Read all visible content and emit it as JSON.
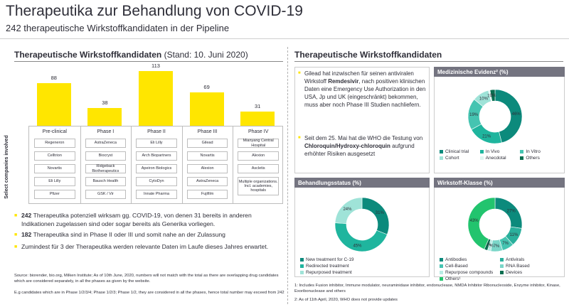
{
  "header": {
    "title": "Therapeutika zur Behandlung von COVID-19",
    "subtitle": "242 therapeutische Wirkstoffkandidaten in der Pipeline"
  },
  "left": {
    "section_title": "Therapeutische Wirkstoffkandidaten",
    "section_title_date": "(Stand: 10. Juni 2020)",
    "ylabel": "Select companies involved",
    "bullets": [
      {
        "bold": "242",
        "text": " Therapeutika potenziell wirksam gg. COVID-19, von denen 31 bereits in anderen Indikationen zugelassen sind oder sogar bereits als Generika vorliegen."
      },
      {
        "bold": "182",
        "text": " Therapeutika sind in Phase II oder III und somit nahe an der Zulassung"
      },
      {
        "bold": "",
        "text": "Zumindest für 3 der Therapeutika werden relevante Daten im Laufe dieses Jahres erwartet."
      }
    ],
    "source": "Source: biorender, bio.org, Milken Institute; As of 10th June, 2020, numbers will not match with the total as there are overlapping drug candidates which are considered separately, in all the phases as given by the website.",
    "source2": "E.g candidates which are in Phase 1/2/3/4; Phase 1/2/3; Phase 1/2, they are  considered in all the phases, hence total number may exceed from 242"
  },
  "chart_data": [
    {
      "type": "bar",
      "title": "Therapeutische Wirkstoffkandidaten (Stand: 10. Juni 2020)",
      "categories": [
        "Pre-clinical",
        "Phase I",
        "Phase II",
        "Phase III",
        "Phase IV"
      ],
      "values": [
        88,
        38,
        113,
        69,
        31
      ],
      "ylim": [
        0,
        113
      ],
      "color": "#ffe600",
      "companies": [
        [
          "Regeneron",
          "Celltrion",
          "Novartis",
          "Eli Lilly",
          "Pfizer"
        ],
        [
          "AstraZeneca",
          "Biocryst",
          "Ridgeback Biotherapeutics",
          "Bausch Health",
          "GSK / Vir"
        ],
        [
          "Eli Lilly",
          "Arch Biopartners",
          "Apeiron Biologics",
          "CytoDyn",
          "Innate Pharma"
        ],
        [
          "Gilead",
          "Novartis",
          "Alexion",
          "AstraZeneca",
          "Fujifilm"
        ],
        [
          "Mianyang Central Hospital",
          "Alexion",
          "Ascletis",
          "Multiple organizations. Incl. academies, hospitals",
          ""
        ]
      ]
    },
    {
      "type": "pie",
      "title": "Medizinische Evidenz² (%)",
      "labels": [
        "Clinical trial",
        "In Vivo",
        "In Vitro",
        "Cohort",
        "Anecdotal",
        "Others"
      ],
      "values": [
        46,
        21,
        19,
        10,
        1,
        3
      ],
      "value_labels": [
        "46%",
        "21%",
        "19%",
        "10%",
        "1%",
        "3%"
      ],
      "colors": [
        "#0c8a7c",
        "#1fb59e",
        "#45c4b1",
        "#9fe3d8",
        "#dff5f1",
        "#0a6e50"
      ]
    },
    {
      "type": "pie",
      "title": "Behandlungsstatus (%)",
      "labels": [
        "New treatment for C-19",
        "Redirected treatment",
        "Repurposed treatment"
      ],
      "values": [
        31,
        45,
        24
      ],
      "value_labels": [
        "31%",
        "45%",
        "24%"
      ],
      "colors": [
        "#0c8a7c",
        "#1fb59e",
        "#9fe3d8"
      ]
    },
    {
      "type": "pie",
      "title": "Wirkstoff-Klasse (%)",
      "labels": [
        "Antibodies",
        "Antivirals",
        "Cell-Based",
        "RNA Based",
        "Repurpose compounds",
        "Devices",
        "Others¹"
      ],
      "values": [
        27,
        11,
        7,
        7,
        2,
        2,
        43
      ],
      "value_labels": [
        "27%",
        "11%",
        "7%",
        "7%",
        "2%",
        "2%",
        "43%"
      ],
      "colors": [
        "#0c8a7c",
        "#2ab09c",
        "#45c4b1",
        "#7ad6c8",
        "#b8ece4",
        "#0a6e50",
        "#22c46e"
      ]
    }
  ],
  "right": {
    "section_title": "Therapeutische Wirkstoffkandidaten",
    "bullets": [
      {
        "pre": "Gilead hat inzwischen für seinen antiviralen Wirkstoff ",
        "bold": "Remdesivir",
        "post": ", nach positiven klinischen Daten eine Emergency Use Authorization in den USA, Jp und UK (eingeschränkt) bekommen, muss aber noch Phase III Studien nachliefern."
      },
      {
        "pre": "Seit dem 25. Mai hat die WHO die Testung von ",
        "bold": "Chloroquin/Hydroxy-chloroquin",
        "post": " aufgrund erhöhter Risiken ausgesetzt"
      }
    ],
    "footnote1": "1: Includes Fusion inhibitor, Immune modulator, neuraminidase inhibitor, endonuclease, NMDA Inhibitor Ribonucleoside, Enzyme inhibitor, Kinase, Exoribonuclease and others",
    "footnote2": "2: As of 11th April, 2020, WHO does not provide updates"
  }
}
